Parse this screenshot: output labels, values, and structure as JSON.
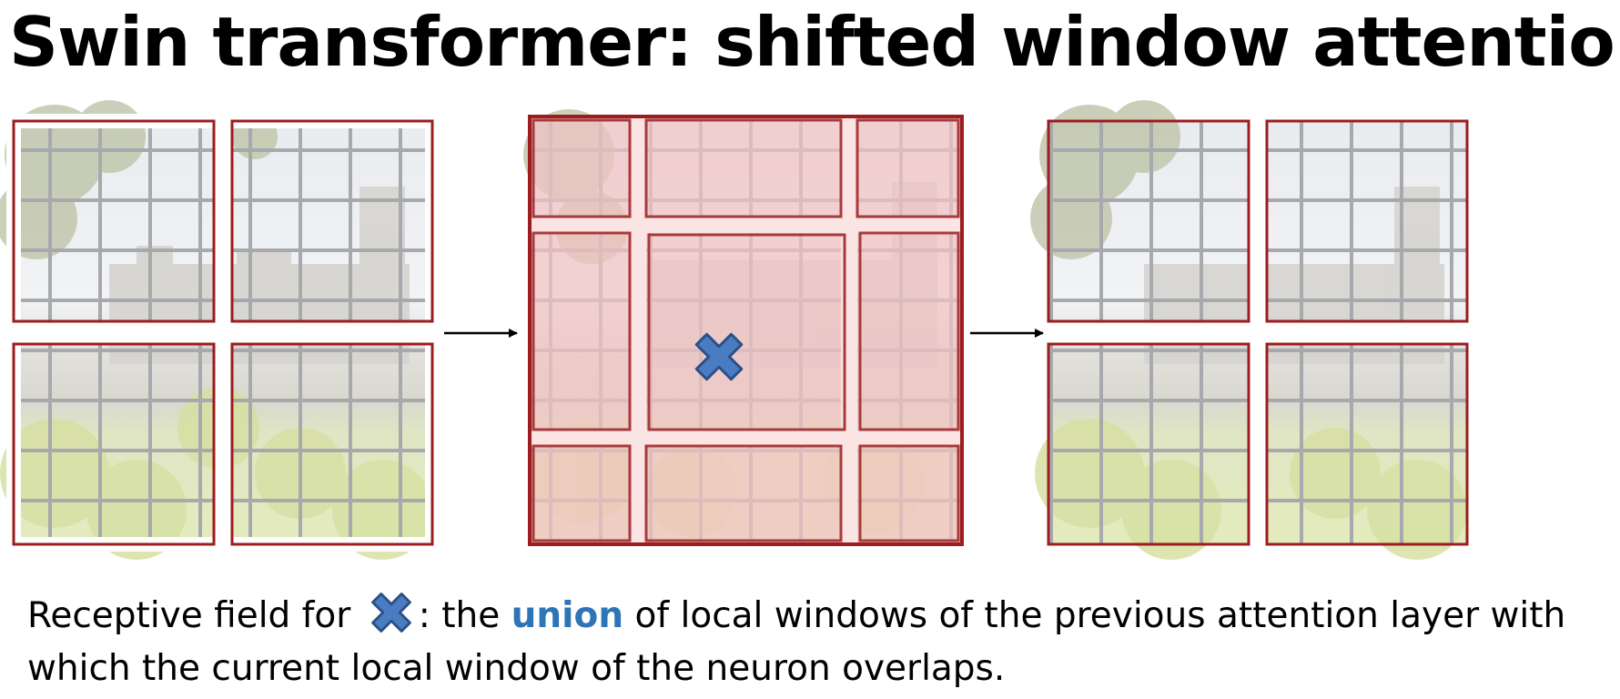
{
  "title": "Swin transformer: shifted window attention",
  "caption": {
    "before": "Receptive field for ",
    "after_icon": ": the ",
    "highlight": "union",
    "rest_line1": " of local windows of the previous attention layer with",
    "line2": "which the current local window of the neuron overlaps."
  },
  "icons": {
    "marker": "x-mark-icon",
    "arrow": "arrow-right-icon"
  },
  "colors": {
    "window_border": "#9c1c1f",
    "window_fill": "#f2c4c4",
    "marker": "#4a7cc1",
    "marker_outline": "#2a4f86",
    "highlight_text": "#2e75b6"
  }
}
